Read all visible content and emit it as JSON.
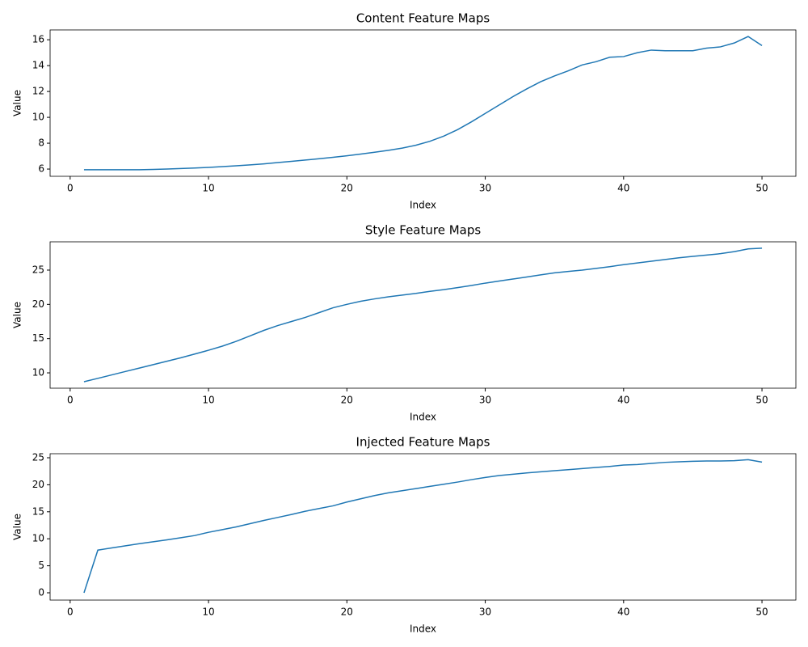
{
  "chart_data": [
    {
      "type": "line",
      "title": "Content Feature Maps",
      "xlabel": "Index",
      "ylabel": "Value",
      "color": "#1f77b4",
      "x": [
        1,
        2,
        3,
        4,
        5,
        6,
        7,
        8,
        9,
        10,
        11,
        12,
        13,
        14,
        15,
        16,
        17,
        18,
        19,
        20,
        21,
        22,
        23,
        24,
        25,
        26,
        27,
        28,
        29,
        30,
        31,
        32,
        33,
        34,
        35,
        36,
        37,
        38,
        39,
        40,
        41,
        42,
        43,
        44,
        45,
        46,
        47,
        48,
        49,
        50
      ],
      "values": [
        5.95,
        5.95,
        5.95,
        5.95,
        5.95,
        5.97,
        6.0,
        6.04,
        6.08,
        6.13,
        6.19,
        6.25,
        6.32,
        6.4,
        6.5,
        6.6,
        6.7,
        6.8,
        6.91,
        7.03,
        7.16,
        7.3,
        7.45,
        7.62,
        7.85,
        8.15,
        8.55,
        9.05,
        9.65,
        10.3,
        10.95,
        11.6,
        12.2,
        12.75,
        13.2,
        13.6,
        14.05,
        14.3,
        14.65,
        14.7,
        15.0,
        15.2,
        15.15,
        15.15,
        15.15,
        15.35,
        15.45,
        15.75,
        16.25,
        15.55
      ],
      "xlim": [
        -1.45,
        52.45
      ],
      "xticks": [
        0,
        10,
        20,
        30,
        40,
        50
      ],
      "ylim": [
        5.44,
        16.76
      ],
      "yticks": [
        6,
        8,
        10,
        12,
        14,
        16
      ]
    },
    {
      "type": "line",
      "title": "Style Feature Maps",
      "xlabel": "Index",
      "ylabel": "Value",
      "color": "#1f77b4",
      "x": [
        1,
        2,
        3,
        4,
        5,
        6,
        7,
        8,
        9,
        10,
        11,
        12,
        13,
        14,
        15,
        16,
        17,
        18,
        19,
        20,
        21,
        22,
        23,
        24,
        25,
        26,
        27,
        28,
        29,
        30,
        31,
        32,
        33,
        34,
        35,
        36,
        37,
        38,
        39,
        40,
        41,
        42,
        43,
        44,
        45,
        46,
        47,
        48,
        49,
        50
      ],
      "values": [
        8.7,
        9.2,
        9.7,
        10.2,
        10.7,
        11.2,
        11.7,
        12.2,
        12.75,
        13.3,
        13.9,
        14.6,
        15.4,
        16.2,
        16.9,
        17.5,
        18.1,
        18.8,
        19.5,
        20.0,
        20.45,
        20.8,
        21.1,
        21.35,
        21.6,
        21.9,
        22.15,
        22.45,
        22.75,
        23.1,
        23.4,
        23.7,
        24.0,
        24.3,
        24.6,
        24.8,
        25.0,
        25.25,
        25.5,
        25.8,
        26.05,
        26.3,
        26.55,
        26.8,
        27.0,
        27.2,
        27.4,
        27.7,
        28.1,
        28.2
      ],
      "xlim": [
        -1.45,
        52.45
      ],
      "xticks": [
        0,
        10,
        20,
        30,
        40,
        50
      ],
      "ylim": [
        7.76,
        29.13
      ],
      "yticks": [
        10,
        15,
        20,
        25
      ]
    },
    {
      "type": "line",
      "title": "Injected Feature Maps",
      "xlabel": "Index",
      "ylabel": "Value",
      "color": "#1f77b4",
      "x": [
        1,
        2,
        3,
        4,
        5,
        6,
        7,
        8,
        9,
        10,
        11,
        12,
        13,
        14,
        15,
        16,
        17,
        18,
        19,
        20,
        21,
        22,
        23,
        24,
        25,
        26,
        27,
        28,
        29,
        30,
        31,
        32,
        33,
        34,
        35,
        36,
        37,
        38,
        39,
        40,
        41,
        42,
        43,
        44,
        45,
        46,
        47,
        48,
        49,
        50
      ],
      "values": [
        0,
        7.9,
        8.3,
        8.7,
        9.1,
        9.45,
        9.8,
        10.2,
        10.6,
        11.2,
        11.7,
        12.2,
        12.8,
        13.4,
        13.95,
        14.5,
        15.1,
        15.6,
        16.1,
        16.8,
        17.4,
        18.0,
        18.5,
        18.9,
        19.3,
        19.7,
        20.1,
        20.5,
        20.95,
        21.35,
        21.7,
        21.95,
        22.2,
        22.4,
        22.6,
        22.8,
        23.0,
        23.2,
        23.4,
        23.65,
        23.75,
        23.95,
        24.15,
        24.25,
        24.35,
        24.4,
        24.4,
        24.45,
        24.65,
        24.2
      ],
      "xlim": [
        -1.45,
        52.45
      ],
      "xticks": [
        0,
        10,
        20,
        30,
        40,
        50
      ],
      "ylim": [
        -1.35,
        25.75
      ],
      "yticks": [
        0,
        5,
        10,
        15,
        20,
        25
      ]
    }
  ]
}
